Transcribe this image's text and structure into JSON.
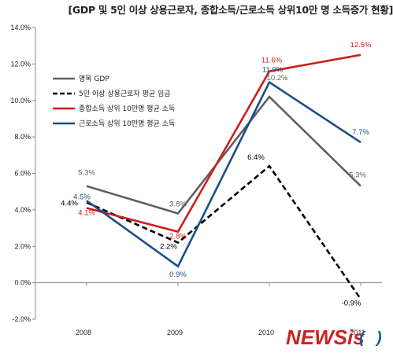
{
  "title": "[GDP 및 5인 이상 상용근로자, 종합소득/근로소득 상위10만 명 소득증가 현황]",
  "watermark": {
    "brand_main": "NEWSis",
    "brand_paren_open": "(",
    "brand_paren_close": ")"
  },
  "chart_data": {
    "type": "line",
    "categories": [
      "2008",
      "2009",
      "2010",
      "2011"
    ],
    "ylim": [
      -2.0,
      14.0
    ],
    "yticks": [
      -2.0,
      0.0,
      2.0,
      4.0,
      6.0,
      8.0,
      10.0,
      12.0,
      14.0
    ],
    "ytick_labels": [
      "-2.0%",
      "0.0%",
      "2.0%",
      "4.0%",
      "6.0%",
      "8.0%",
      "10.0%",
      "12.0%",
      "14.0%"
    ],
    "grid": false,
    "legend_position": "top-left",
    "series": [
      {
        "name": "명목 GDP",
        "color": "#606060",
        "dash": "solid",
        "values": [
          5.3,
          3.8,
          10.2,
          5.3
        ],
        "labels": [
          "5.3%",
          "3.8%",
          "10.2%",
          "5.3%"
        ]
      },
      {
        "name": "5인 이상 상용근로자 평균 임금",
        "color": "#000000",
        "dash": "dashed",
        "values": [
          4.4,
          2.2,
          6.4,
          -0.9
        ],
        "labels": [
          "4.4%",
          "2.2%",
          "6.4%",
          "-0.9%"
        ]
      },
      {
        "name": "종합소득 상위 10만명 평균 소득",
        "color": "#cc1f1f",
        "dash": "solid",
        "values": [
          4.1,
          2.8,
          11.6,
          12.5
        ],
        "labels": [
          "4.1%",
          "2.8%",
          "11.6%",
          "12.5%"
        ]
      },
      {
        "name": "근로소득 상위 10만명 평균 소득",
        "color": "#1a4f8a",
        "dash": "solid",
        "values": [
          4.5,
          0.9,
          11.0,
          7.7
        ],
        "labels": [
          "4.5%",
          "0.9%",
          "11.0%",
          "7.7%"
        ]
      }
    ]
  }
}
